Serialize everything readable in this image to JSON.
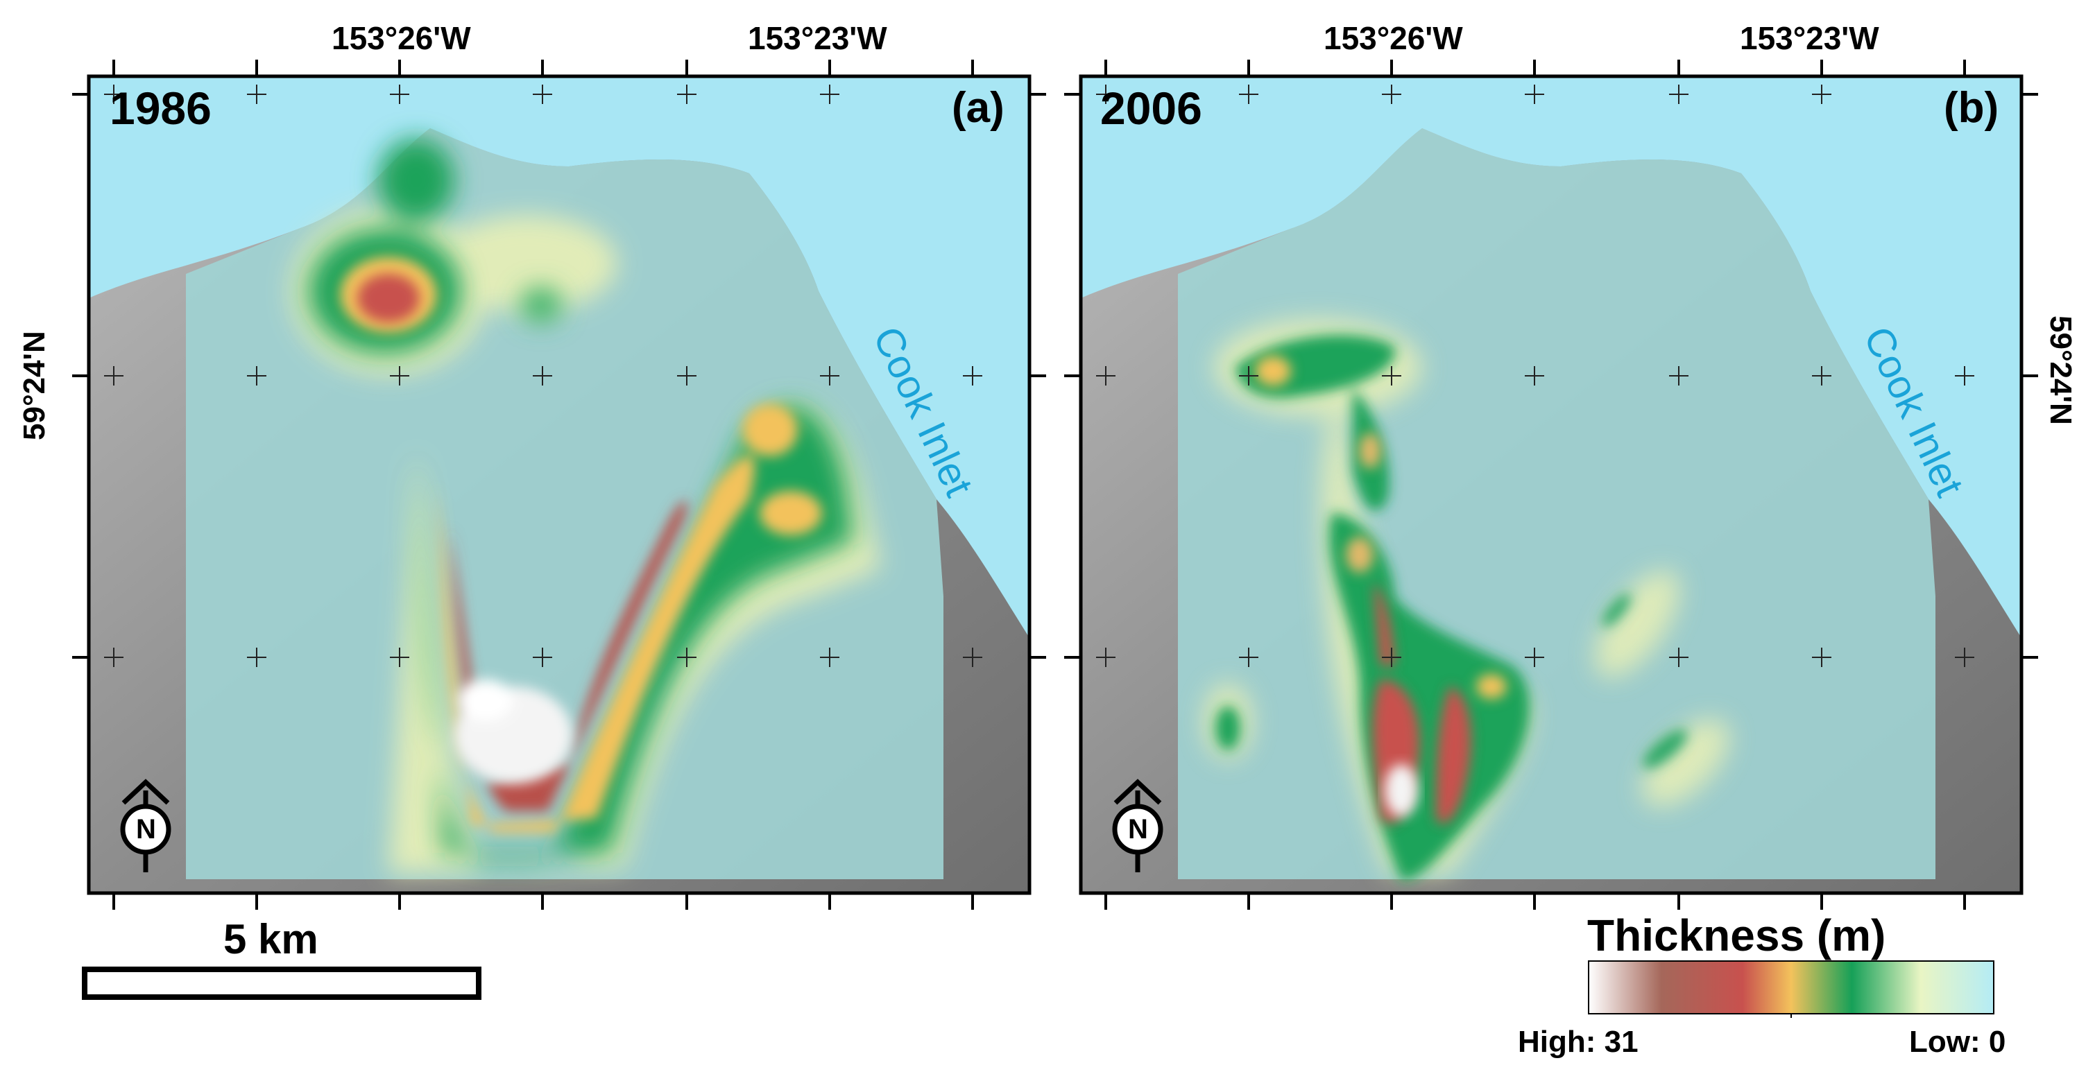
{
  "coordinates": {
    "lon_left": "153°26'W",
    "lon_right": "153°23'W",
    "lat": "59°24'N"
  },
  "panels": [
    {
      "year": "1986",
      "label": "(a)",
      "water_label": "Cook Inlet"
    },
    {
      "year": "2006",
      "label": "(b)",
      "water_label": "Cook Inlet"
    }
  ],
  "scale_bar": {
    "label": "5 km"
  },
  "legend": {
    "title": "Thickness (m)",
    "high_label": "High: 31",
    "low_label": "Low: 0",
    "high_value": 31,
    "low_value": 0,
    "ramp_colors": [
      "#f4f4f4",
      "#a5675a",
      "#c8514e",
      "#f3c25c",
      "#16a058",
      "#d7f0b8",
      "#b4ecf5"
    ]
  },
  "colors": {
    "water": "#a8e6f4",
    "terrain": "#9fd2d2",
    "hillshade": "#9a9a9a"
  }
}
